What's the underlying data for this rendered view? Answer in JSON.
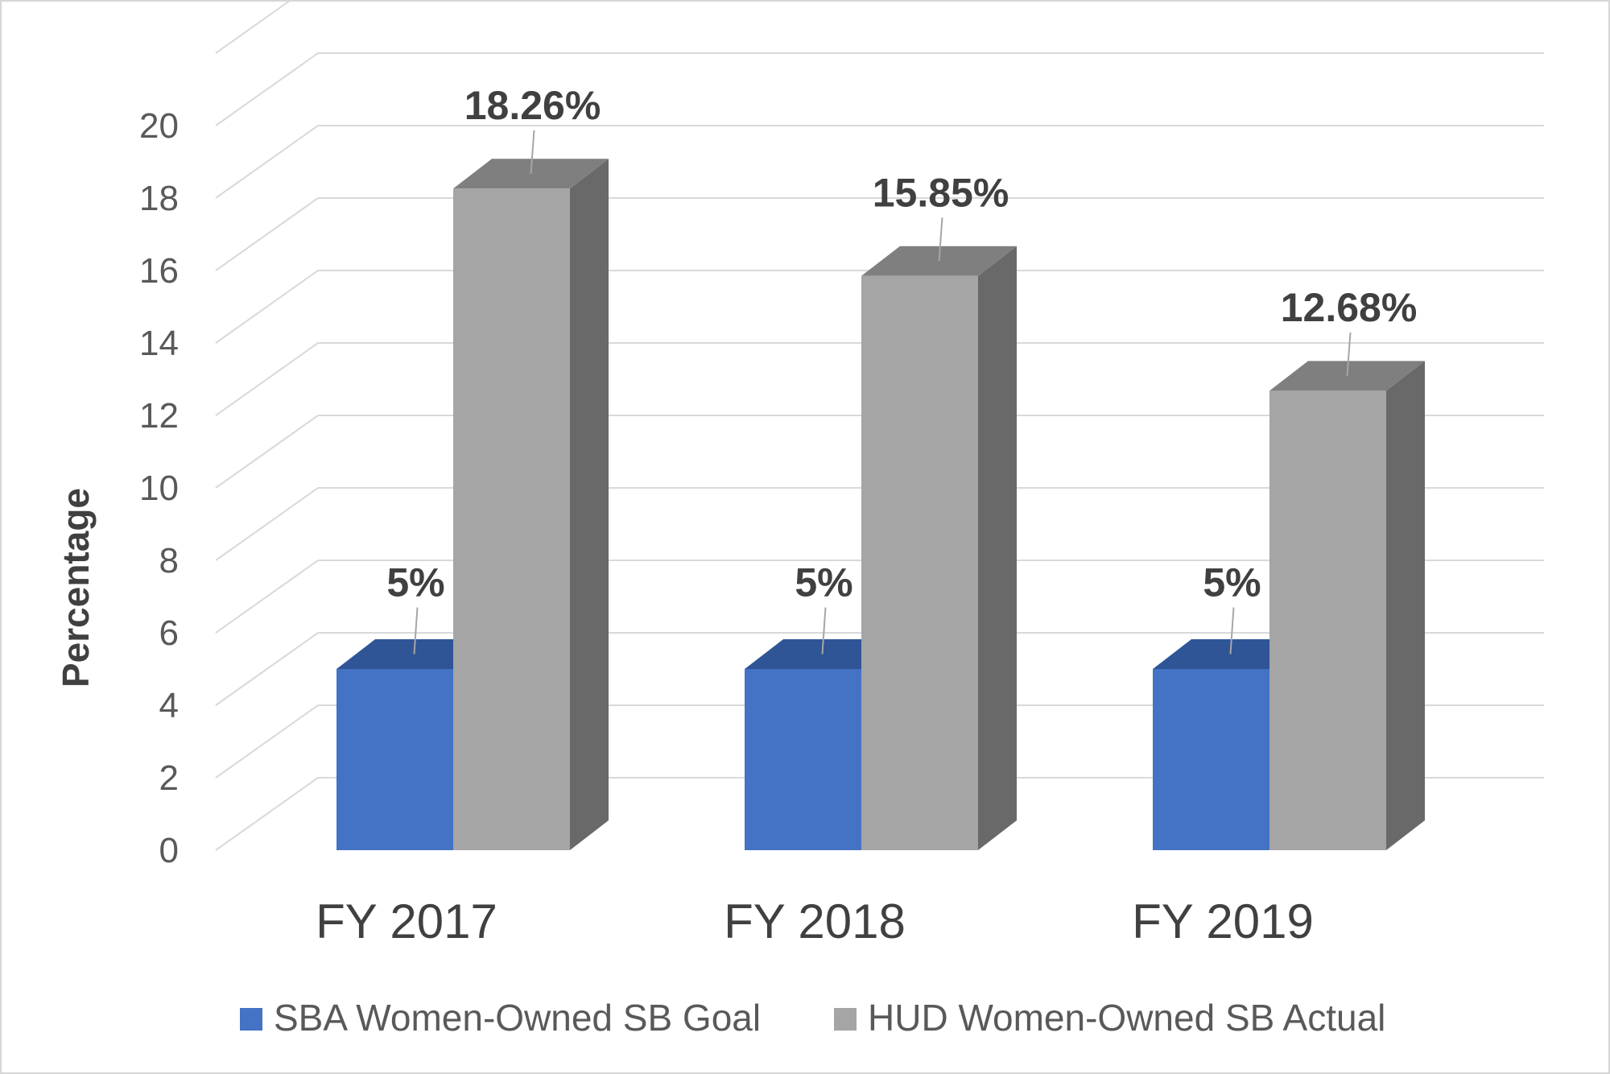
{
  "chart_data": {
    "type": "bar",
    "style": "3d-clustered-column",
    "categories": [
      "FY 2017",
      "FY 2018",
      "FY 2019"
    ],
    "series": [
      {
        "name": "SBA Women-Owned SB Goal",
        "values": [
          5,
          5,
          5
        ],
        "labels": [
          "5%",
          "5%",
          "5%"
        ],
        "colors": {
          "front": "#4472C4",
          "top": "#2F5597",
          "side": "#2E4F8F"
        }
      },
      {
        "name": "HUD Women-Owned SB Actual",
        "values": [
          18.26,
          15.85,
          12.68
        ],
        "labels": [
          "18.26%",
          "15.85%",
          "12.68%"
        ],
        "colors": {
          "front": "#A5A5A5",
          "top": "#7F7F7F",
          "side": "#696969"
        }
      }
    ],
    "ylabel": "Percentage",
    "xlabel": "",
    "ylim": [
      0,
      20
    ],
    "yticks": [
      "0",
      "2",
      "4",
      "6",
      "8",
      "10",
      "12",
      "14",
      "16",
      "18",
      "20"
    ],
    "grid": true,
    "legend_position": "bottom",
    "grid_color": "#D9D9D9"
  }
}
